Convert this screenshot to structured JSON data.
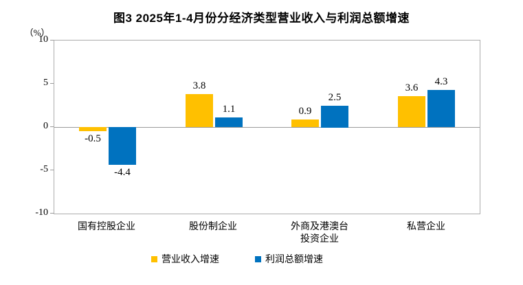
{
  "chart_data": {
    "type": "bar",
    "title": "图3 2025年1-4月份分经济类型营业收入与利润总额增速",
    "unit": "（%）",
    "categories": [
      "国有控股企业",
      "股份制企业",
      "外商及港澳台\n投资企业",
      "私营企业"
    ],
    "series": [
      {
        "name": "营业收入增速",
        "color": "#FFC000",
        "values": [
          -0.5,
          3.8,
          0.9,
          3.6
        ]
      },
      {
        "name": "利润总额增速",
        "color": "#0072BF",
        "values": [
          -4.4,
          1.1,
          2.5,
          4.3
        ]
      }
    ],
    "value_labels": [
      "-0.5",
      "3.8",
      "0.9",
      "3.6",
      "-4.4",
      "1.1",
      "2.5",
      "4.3"
    ],
    "ylim": [
      -10,
      10
    ],
    "yticks": [
      10,
      5,
      0,
      -5,
      -10
    ],
    "xlabel": "",
    "ylabel": "",
    "grid": "zero-line-only",
    "legend_position": "bottom"
  },
  "styles": {
    "plot_border_color": "#ababab",
    "axis_line_color": "#9a9a9a",
    "text_color": "#000000",
    "background_color": "#ffffff"
  }
}
